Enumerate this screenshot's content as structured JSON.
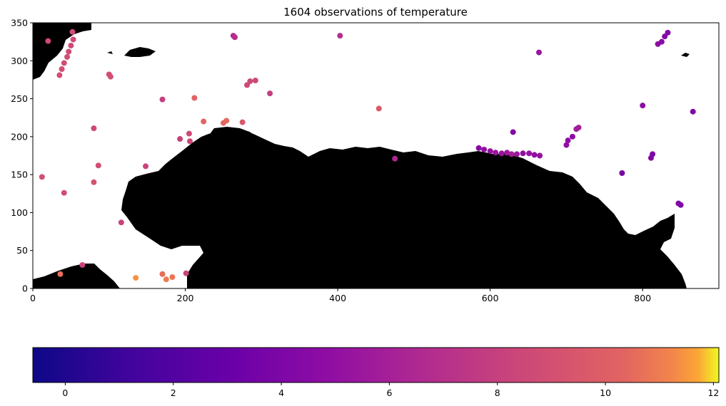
{
  "chart_data": [
    {
      "type": "scatter",
      "title": "1604 observations of temperature",
      "xlim": [
        0,
        900
      ],
      "ylim": [
        0,
        350
      ],
      "x_ticks": [
        0,
        200,
        400,
        600,
        800
      ],
      "y_ticks": [
        0,
        50,
        100,
        150,
        200,
        250,
        300,
        350
      ],
      "background": "land mask (black) with water (white)",
      "point_color_scale": "plasma",
      "points": [
        {
          "x": 20,
          "y": 326,
          "v": 8.6
        },
        {
          "x": 52,
          "y": 338,
          "v": 8.8
        },
        {
          "x": 53,
          "y": 328,
          "v": 8.7
        },
        {
          "x": 50,
          "y": 320,
          "v": 8.7
        },
        {
          "x": 47,
          "y": 312,
          "v": 8.8
        },
        {
          "x": 45,
          "y": 305,
          "v": 8.8
        },
        {
          "x": 41,
          "y": 297,
          "v": 8.9
        },
        {
          "x": 38,
          "y": 289,
          "v": 8.9
        },
        {
          "x": 35,
          "y": 281,
          "v": 8.8
        },
        {
          "x": 100,
          "y": 282,
          "v": 8.9
        },
        {
          "x": 102,
          "y": 279,
          "v": 9.0
        },
        {
          "x": 80,
          "y": 211,
          "v": 8.5
        },
        {
          "x": 86,
          "y": 162,
          "v": 8.8
        },
        {
          "x": 12,
          "y": 147,
          "v": 9.0
        },
        {
          "x": 80,
          "y": 140,
          "v": 9.2
        },
        {
          "x": 41,
          "y": 126,
          "v": 8.8
        },
        {
          "x": 116,
          "y": 87,
          "v": 8.2
        },
        {
          "x": 148,
          "y": 161,
          "v": 8.3
        },
        {
          "x": 170,
          "y": 249,
          "v": 7.9
        },
        {
          "x": 212,
          "y": 251,
          "v": 10.3
        },
        {
          "x": 224,
          "y": 220,
          "v": 10.2
        },
        {
          "x": 193,
          "y": 197,
          "v": 8.1
        },
        {
          "x": 205,
          "y": 204,
          "v": 8.5
        },
        {
          "x": 206,
          "y": 194,
          "v": 8.5
        },
        {
          "x": 250,
          "y": 218,
          "v": 10.4
        },
        {
          "x": 254,
          "y": 221,
          "v": 10.5
        },
        {
          "x": 275,
          "y": 219,
          "v": 9.5
        },
        {
          "x": 263,
          "y": 333,
          "v": 6.8
        },
        {
          "x": 265,
          "y": 331,
          "v": 6.9
        },
        {
          "x": 403,
          "y": 333,
          "v": 6.9
        },
        {
          "x": 285,
          "y": 273,
          "v": 8.6
        },
        {
          "x": 292,
          "y": 274,
          "v": 8.6
        },
        {
          "x": 281,
          "y": 268,
          "v": 8.5
        },
        {
          "x": 311,
          "y": 257,
          "v": 7.9
        },
        {
          "x": 454,
          "y": 237,
          "v": 9.6
        },
        {
          "x": 475,
          "y": 171,
          "v": 6.4
        },
        {
          "x": 36,
          "y": 19,
          "v": 10.6
        },
        {
          "x": 65,
          "y": 31,
          "v": 8.3
        },
        {
          "x": 135,
          "y": 14,
          "v": 11.4
        },
        {
          "x": 170,
          "y": 19,
          "v": 10.6
        },
        {
          "x": 175,
          "y": 12,
          "v": 11.0
        },
        {
          "x": 183,
          "y": 15,
          "v": 10.8
        },
        {
          "x": 201,
          "y": 20,
          "v": 8.2
        },
        {
          "x": 585,
          "y": 185,
          "v": 4.5
        },
        {
          "x": 592,
          "y": 183,
          "v": 5.0
        },
        {
          "x": 600,
          "y": 181,
          "v": 5.2
        },
        {
          "x": 607,
          "y": 179,
          "v": 5.5
        },
        {
          "x": 615,
          "y": 178,
          "v": 5.3
        },
        {
          "x": 622,
          "y": 179,
          "v": 5.6
        },
        {
          "x": 628,
          "y": 177,
          "v": 5.9
        },
        {
          "x": 635,
          "y": 177,
          "v": 5.5
        },
        {
          "x": 643,
          "y": 178,
          "v": 5.0
        },
        {
          "x": 651,
          "y": 178,
          "v": 5.2
        },
        {
          "x": 658,
          "y": 176,
          "v": 5.0
        },
        {
          "x": 665,
          "y": 175,
          "v": 5.1
        },
        {
          "x": 630,
          "y": 206,
          "v": 4.4
        },
        {
          "x": 664,
          "y": 311,
          "v": 5.4
        },
        {
          "x": 700,
          "y": 189,
          "v": 4.9
        },
        {
          "x": 702,
          "y": 195,
          "v": 4.8
        },
        {
          "x": 708,
          "y": 200,
          "v": 4.7
        },
        {
          "x": 716,
          "y": 212,
          "v": 5.9
        },
        {
          "x": 713,
          "y": 210,
          "v": 5.8
        },
        {
          "x": 800,
          "y": 241,
          "v": 4.8
        },
        {
          "x": 866,
          "y": 233,
          "v": 4.2
        },
        {
          "x": 773,
          "y": 152,
          "v": 3.9
        },
        {
          "x": 811,
          "y": 172,
          "v": 4.2
        },
        {
          "x": 813,
          "y": 177,
          "v": 4.1
        },
        {
          "x": 847,
          "y": 112,
          "v": 4.1
        },
        {
          "x": 850,
          "y": 110,
          "v": 4.2
        },
        {
          "x": 820,
          "y": 322,
          "v": 4.8
        },
        {
          "x": 825,
          "y": 325,
          "v": 4.6
        },
        {
          "x": 829,
          "y": 332,
          "v": 4.4
        },
        {
          "x": 833,
          "y": 337,
          "v": 4.3
        }
      ]
    },
    {
      "type": "colorbar",
      "colormap": "plasma",
      "range": [
        -0.6,
        12.1
      ],
      "ticks": [
        0,
        2,
        4,
        6,
        8,
        10,
        12
      ]
    }
  ]
}
